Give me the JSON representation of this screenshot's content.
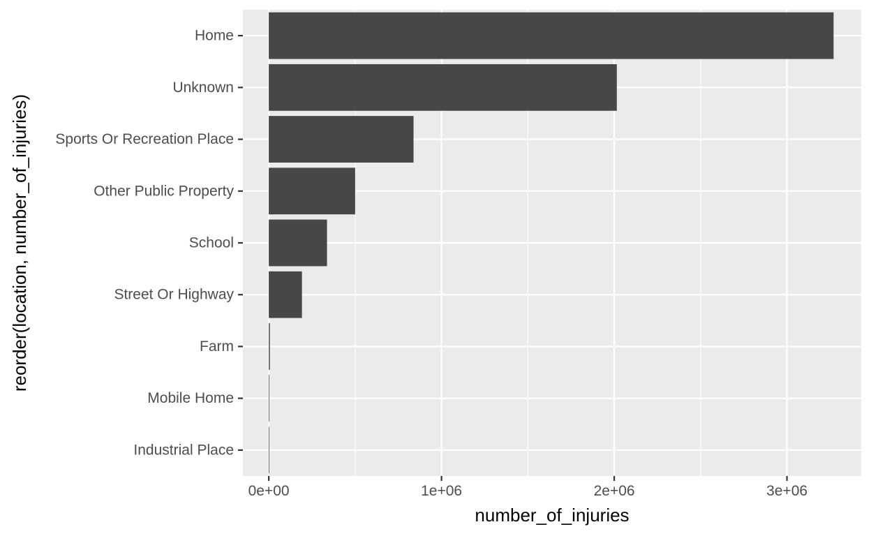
{
  "chart_data": {
    "type": "bar",
    "orientation": "horizontal",
    "xlabel": "number_of_injuries",
    "ylabel": "reorder(location, number_of_injuries)",
    "categories": [
      "Home",
      "Unknown",
      "Sports Or Recreation Place",
      "Other Public Property",
      "School",
      "Street Or Highway",
      "Farm",
      "Mobile Home",
      "Industrial Place"
    ],
    "values": [
      3270000,
      2015000,
      838000,
      500000,
      337000,
      192000,
      6000,
      3000,
      1000
    ],
    "xlim": [
      -150000,
      3430000
    ],
    "x_ticks": [
      0,
      1000000,
      2000000,
      3000000
    ],
    "x_tick_labels": [
      "0e+00",
      "1e+06",
      "2e+06",
      "3e+06"
    ],
    "grid": true,
    "colors": {
      "bar": "#474747",
      "panel": "#ebebeb",
      "grid": "#ffffff"
    }
  }
}
